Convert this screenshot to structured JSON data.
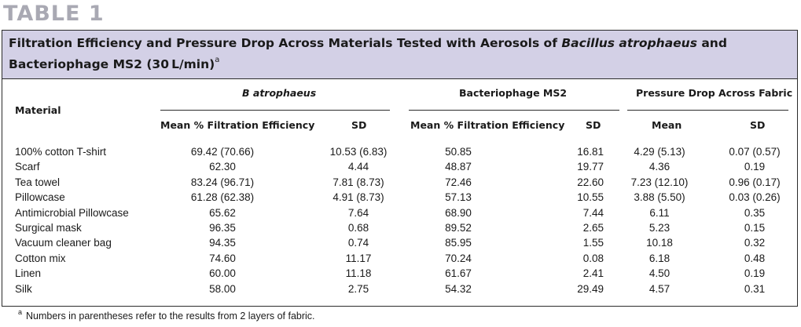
{
  "table_label": "TABLE 1",
  "title": {
    "part1": "Filtration Efficiency and Pressure Drop Across Materials Tested with Aerosols of ",
    "italic": "Bacillus atrophaeus",
    "part2": " and Bacteriophage MS2 (30 L/min)",
    "marker": "a"
  },
  "headers": {
    "material": "Material",
    "group_b": "B atrophaeus",
    "group_ms2": "Bacteriophage MS2",
    "group_pressure": "Pressure Drop Across Fabric",
    "mean_eff": "Mean % Filtration Efficiency",
    "sd": "SD",
    "mean": "Mean"
  },
  "rows": [
    {
      "material": "100% cotton T-shirt",
      "b_mean": "69.42 (70.66)",
      "b_sd": "10.53 (6.83)",
      "ms2_mean": "50.85",
      "ms2_sd": "16.81",
      "p_mean": "4.29 (5.13)",
      "p_sd": "0.07 (0.57)"
    },
    {
      "material": "Scarf",
      "b_mean": "62.30",
      "b_sd": "4.44",
      "ms2_mean": "48.87",
      "ms2_sd": "19.77",
      "p_mean": "4.36",
      "p_sd": "0.19"
    },
    {
      "material": "Tea towel",
      "b_mean": "83.24 (96.71)",
      "b_sd": "7.81 (8.73)",
      "ms2_mean": "72.46",
      "ms2_sd": "22.60",
      "p_mean": "7.23 (12.10)",
      "p_sd": "0.96 (0.17)"
    },
    {
      "material": "Pillowcase",
      "b_mean": "61.28 (62.38)",
      "b_sd": "4.91 (8.73)",
      "ms2_mean": "57.13",
      "ms2_sd": "10.55",
      "p_mean": "3.88 (5.50)",
      "p_sd": "0.03 (0.26)"
    },
    {
      "material": "Antimicrobial Pillowcase",
      "b_mean": "65.62",
      "b_sd": "7.64",
      "ms2_mean": "68.90",
      "ms2_sd": "7.44",
      "p_mean": "6.11",
      "p_sd": "0.35"
    },
    {
      "material": "Surgical mask",
      "b_mean": "96.35",
      "b_sd": "0.68",
      "ms2_mean": "89.52",
      "ms2_sd": "2.65",
      "p_mean": "5.23",
      "p_sd": "0.15"
    },
    {
      "material": "Vacuum cleaner bag",
      "b_mean": "94.35",
      "b_sd": "0.74",
      "ms2_mean": "85.95",
      "ms2_sd": "1.55",
      "p_mean": "10.18",
      "p_sd": "0.32"
    },
    {
      "material": "Cotton mix",
      "b_mean": "74.60",
      "b_sd": "11.17",
      "ms2_mean": "70.24",
      "ms2_sd": "0.08",
      "p_mean": "6.18",
      "p_sd": "0.48"
    },
    {
      "material": "Linen",
      "b_mean": "60.00",
      "b_sd": "11.18",
      "ms2_mean": "61.67",
      "ms2_sd": "2.41",
      "p_mean": "4.50",
      "p_sd": "0.19"
    },
    {
      "material": "Silk",
      "b_mean": "58.00",
      "b_sd": "2.75",
      "ms2_mean": "54.32",
      "ms2_sd": "29.49",
      "p_mean": "4.57",
      "p_sd": "0.31"
    }
  ],
  "footnote": {
    "marker": "a",
    "text": "Numbers in parentheses refer to the results from 2 layers of fabric."
  }
}
